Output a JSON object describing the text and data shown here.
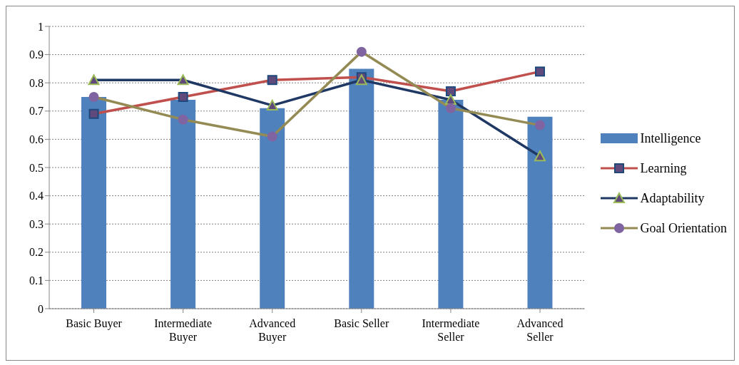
{
  "chart_data": {
    "type": "bar",
    "categories": [
      "Basic Buyer",
      "Intermediate Buyer",
      "Advanced Buyer",
      "Basic Seller",
      "Intermediate Seller",
      "Advanced Seller"
    ],
    "series": [
      {
        "name": "Intelligence",
        "color": "#4f81bd",
        "values": [
          0.75,
          0.74,
          0.71,
          0.85,
          0.74,
          0.68
        ]
      },
      {
        "name": "Learning",
        "type": "line",
        "marker": "square",
        "color": "#c0504d",
        "values": [
          0.69,
          0.75,
          0.81,
          0.82,
          0.77,
          0.84
        ]
      },
      {
        "name": "Adaptability",
        "type": "line",
        "marker": "triangle",
        "color": "#1f3864",
        "values": [
          0.81,
          0.81,
          0.72,
          0.81,
          0.74,
          0.54
        ]
      },
      {
        "name": "Goal Orientation",
        "type": "line",
        "marker": "circle",
        "color": "#948a54",
        "values": [
          0.75,
          0.67,
          0.61,
          0.91,
          0.71,
          0.65
        ]
      }
    ],
    "ylim": [
      0,
      1
    ],
    "yticks": [
      0,
      0.1,
      0.2,
      0.3,
      0.4,
      0.5,
      0.6,
      0.7,
      0.8,
      0.9,
      1
    ],
    "grid": "y",
    "legend": "right",
    "line_style": "solid"
  }
}
